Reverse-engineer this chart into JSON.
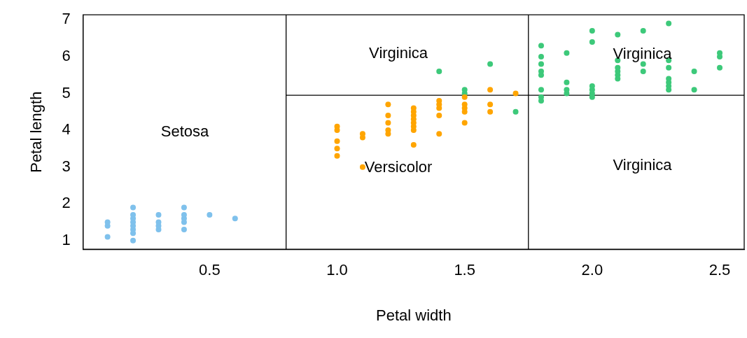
{
  "chart_data": {
    "type": "scatter",
    "xlabel": "Petal width",
    "ylabel": "Petal length",
    "xlim": [
      0.004,
      2.596
    ],
    "ylim": [
      0.764,
      7.136
    ],
    "xticks": [
      0.5,
      {
        "value": 1,
        "label": "1.0"
      },
      1.5,
      {
        "value": 2,
        "label": "2.0"
      },
      2.5
    ],
    "yticks": [
      1,
      2,
      3,
      4,
      5,
      6,
      7
    ],
    "grid": false,
    "legend": false,
    "marker": "circle",
    "series": [
      {
        "color": "#7fc1ec",
        "x": [
          0.1,
          0.1,
          0.1,
          0.2,
          0.2,
          0.2,
          0.2,
          0.2,
          0.2,
          0.2,
          0.2,
          0.3,
          0.3,
          0.3,
          0.3,
          0.4,
          0.4,
          0.4,
          0.4,
          0.4,
          0.5,
          0.6
        ],
        "values": [
          1.1,
          1.4,
          1.5,
          1.0,
          1.2,
          1.3,
          1.4,
          1.5,
          1.6,
          1.7,
          1.9,
          1.3,
          1.4,
          1.5,
          1.7,
          1.3,
          1.5,
          1.6,
          1.7,
          1.9,
          1.7,
          1.6
        ]
      },
      {
        "color": "#ffa500",
        "x": [
          1.0,
          1.0,
          1.0,
          1.0,
          1.0,
          1.1,
          1.1,
          1.1,
          1.2,
          1.2,
          1.2,
          1.2,
          1.2,
          1.3,
          1.3,
          1.3,
          1.3,
          1.3,
          1.3,
          1.3,
          1.3,
          1.4,
          1.4,
          1.4,
          1.4,
          1.4,
          1.5,
          1.5,
          1.5,
          1.5,
          1.5,
          1.6,
          1.6,
          1.6,
          1.7
        ],
        "values": [
          3.3,
          3.5,
          3.7,
          4.0,
          4.1,
          3.0,
          3.8,
          3.9,
          3.9,
          4.0,
          4.2,
          4.4,
          4.7,
          3.6,
          4.0,
          4.1,
          4.2,
          4.3,
          4.4,
          4.5,
          4.6,
          3.9,
          4.4,
          4.6,
          4.7,
          4.8,
          4.2,
          4.5,
          4.6,
          4.7,
          4.9,
          4.5,
          4.7,
          5.1,
          5.0
        ]
      },
      {
        "color": "#3dc97a",
        "x": [
          1.4,
          1.5,
          1.5,
          1.6,
          1.7,
          1.8,
          1.8,
          1.8,
          1.8,
          1.8,
          1.8,
          1.8,
          1.8,
          1.9,
          1.9,
          1.9,
          1.9,
          2.0,
          2.0,
          2.0,
          2.0,
          2.0,
          2.0,
          2.1,
          2.1,
          2.1,
          2.1,
          2.1,
          2.1,
          2.2,
          2.2,
          2.2,
          2.3,
          2.3,
          2.3,
          2.3,
          2.3,
          2.3,
          2.3,
          2.4,
          2.4,
          2.5,
          2.5,
          2.5
        ],
        "values": [
          5.6,
          5.0,
          5.1,
          5.8,
          4.5,
          4.8,
          4.9,
          5.1,
          5.5,
          5.6,
          5.8,
          6.0,
          6.3,
          5.0,
          5.1,
          5.3,
          6.1,
          4.9,
          5.0,
          5.1,
          5.2,
          6.4,
          6.7,
          5.4,
          5.5,
          5.6,
          5.7,
          5.9,
          6.6,
          5.6,
          5.8,
          6.7,
          5.1,
          5.2,
          5.3,
          5.4,
          5.7,
          5.9,
          6.9,
          5.1,
          5.6,
          5.7,
          6.0,
          6.1
        ]
      },
      {
        "type": "line",
        "marker": "none",
        "color": "#000000",
        "x": [
          0.8,
          2.596
        ],
        "values": [
          4.95,
          4.95
        ]
      }
    ],
    "ref_lines": [
      {
        "axis": "x",
        "value": 0.8,
        "color": "#000000"
      },
      {
        "axis": "x",
        "value": 1.75,
        "color": "#000000"
      }
    ],
    "annotations": [
      "Setosa",
      "Virginica",
      "Versicolor",
      "Virginica",
      "Virginica"
    ]
  }
}
